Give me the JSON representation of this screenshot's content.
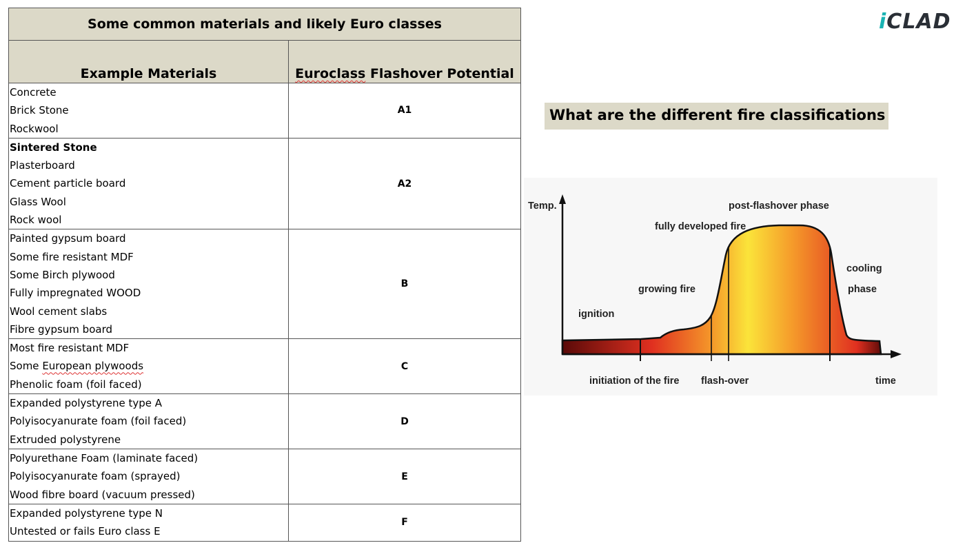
{
  "table": {
    "title": "Some common materials and likely Euro classes",
    "headers": [
      "Example Materials",
      "Euroclass Flashover Potential"
    ],
    "rows": [
      {
        "materials": [
          "Concrete",
          "Brick Stone",
          "Rockwool"
        ],
        "class": "A1"
      },
      {
        "materials": [
          "Sintered Stone",
          "Plasterboard",
          "Cement particle board",
          "Glass Wool",
          "Rock wool"
        ],
        "class": "A2"
      },
      {
        "materials": [
          "Painted gypsum board",
          "Some fire resistant MDF",
          "Some Birch plywood",
          "Fully impregnated WOOD",
          "Wool cement slabs",
          "Fibre gypsum board"
        ],
        "class": "B"
      },
      {
        "materials": [
          "Most fire resistant MDF",
          "Some European plywoods",
          "Phenolic foam (foil faced)"
        ],
        "class": "C"
      },
      {
        "materials": [
          "Expanded polystyrene type A",
          "Polyisocyanurate foam (foil faced)",
          "Extruded polystyrene"
        ],
        "class": "D"
      },
      {
        "materials": [
          "Polyurethane Foam (laminate faced)",
          "Polyisocyanurate foam (sprayed)",
          "Wood fibre board (vacuum pressed)"
        ],
        "class": "E"
      },
      {
        "materials": [
          "Expanded polystyrene type N",
          "Untested or fails Euro class E"
        ],
        "class": "F"
      }
    ]
  },
  "logo": {
    "prefix": "i",
    "text": "CLAD"
  },
  "heading": "What are the different fire classifications",
  "fire_diagram": {
    "axis_y": "Temp.",
    "axis_x": "time",
    "phases": [
      "post-flashover phase",
      "fully developed fire",
      "growing fire",
      "ignition",
      "cooling",
      "phase"
    ],
    "markers": [
      "initiation of the fire",
      "flash-over"
    ],
    "colors": {
      "dark_red": "#5a0a08",
      "red": "#e03020",
      "orange": "#f59a2a",
      "yellow": "#fbe43a"
    }
  }
}
